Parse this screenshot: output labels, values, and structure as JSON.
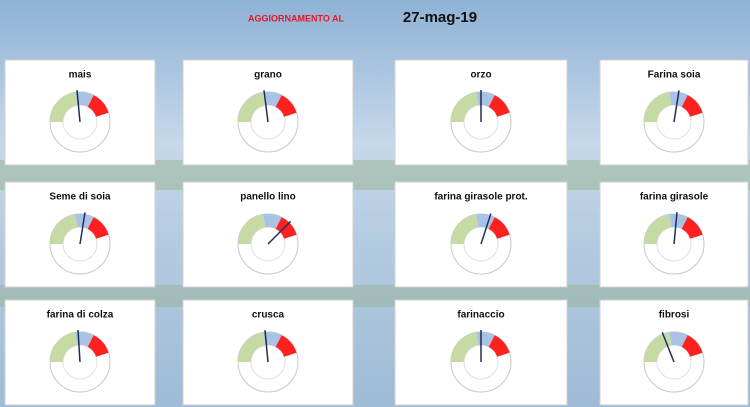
{
  "header": {
    "label": "AGGIORNAMENTO AL",
    "date": "27-mag-19"
  },
  "gauge_scale": {
    "min": 0,
    "max": 100,
    "bands": [
      {
        "color": "#c6dba3",
        "from": 0,
        "to": 45
      },
      {
        "color": "#a9c3e6",
        "from": 45,
        "to": 65
      },
      {
        "color": "#ff2020",
        "from": 65,
        "to": 90
      }
    ],
    "needle_color": "#1f2f5a"
  },
  "chart_data": [
    {
      "type": "gauge",
      "title": "mais",
      "value": 47
    },
    {
      "type": "gauge",
      "title": "grano",
      "value": 46
    },
    {
      "type": "gauge",
      "title": "orzo",
      "value": 50
    },
    {
      "type": "gauge",
      "title": "Farina soia",
      "value": 55
    },
    {
      "type": "gauge",
      "title": "Seme di soia",
      "value": 55
    },
    {
      "type": "gauge",
      "title": "panello lino",
      "value": 75
    },
    {
      "type": "gauge",
      "title": "farina girasole prot.",
      "value": 60
    },
    {
      "type": "gauge",
      "title": "farina girasole",
      "value": 53
    },
    {
      "type": "gauge",
      "title": "farina di colza",
      "value": 48
    },
    {
      "type": "gauge",
      "title": "crusca",
      "value": 47
    },
    {
      "type": "gauge",
      "title": "farinaccio",
      "value": 50
    },
    {
      "type": "gauge",
      "title": "fibrosi",
      "value": 38
    }
  ]
}
